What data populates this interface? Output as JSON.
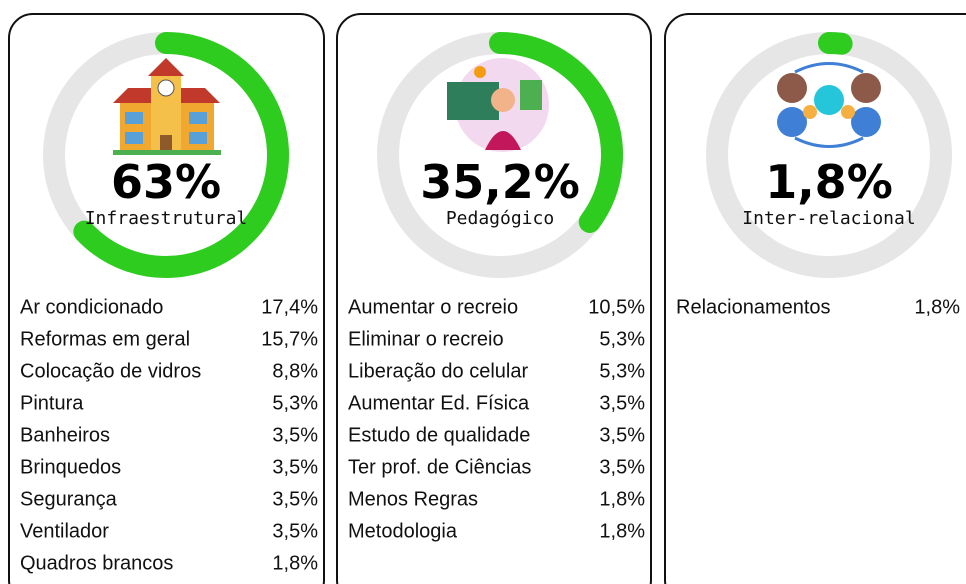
{
  "chart_data": [
    {
      "type": "gauge",
      "value": 63,
      "value_label": "63%",
      "label": "Infraestrutural",
      "color": "#2ecc1f",
      "ylim": [
        0,
        100
      ],
      "categories": [
        "Ar condicionado",
        "Reformas em geral",
        "Colocação de vidros",
        "Pintura",
        "Banheiros",
        "Brinquedos",
        "Segurança",
        "Ventilador",
        "Quadros brancos"
      ],
      "values": [
        17.4,
        15.7,
        8.8,
        5.3,
        3.5,
        3.5,
        3.5,
        3.5,
        1.8
      ],
      "value_labels": [
        "17,4%",
        "15,7%",
        "8,8%",
        "5,3%",
        "3,5%",
        "3,5%",
        "3,5%",
        "3,5%",
        "1,8%"
      ]
    },
    {
      "type": "gauge",
      "value": 35.2,
      "value_label": "35,2%",
      "label": "Pedagógico",
      "color": "#2ecc1f",
      "ylim": [
        0,
        100
      ],
      "categories": [
        "Aumentar o recreio",
        "Eliminar o recreio",
        "Liberação do celular",
        "Aumentar Ed. Física",
        "Estudo de qualidade",
        "Ter prof. de Ciências",
        "Menos Regras",
        "Metodologia"
      ],
      "values": [
        10.5,
        5.3,
        5.3,
        3.5,
        3.5,
        3.5,
        1.8,
        1.8
      ],
      "value_labels": [
        "10,5%",
        "5,3%",
        "5,3%",
        "3,5%",
        "3,5%",
        "3,5%",
        "1,8%",
        "1,8%"
      ]
    },
    {
      "type": "gauge",
      "value": 1.8,
      "value_label": "1,8%",
      "label": "Inter-relacional",
      "color": "#2ecc1f",
      "ylim": [
        0,
        100
      ],
      "categories": [
        "Relacionamentos"
      ],
      "values": [
        1.8
      ],
      "value_labels": [
        "1,8%"
      ]
    }
  ]
}
